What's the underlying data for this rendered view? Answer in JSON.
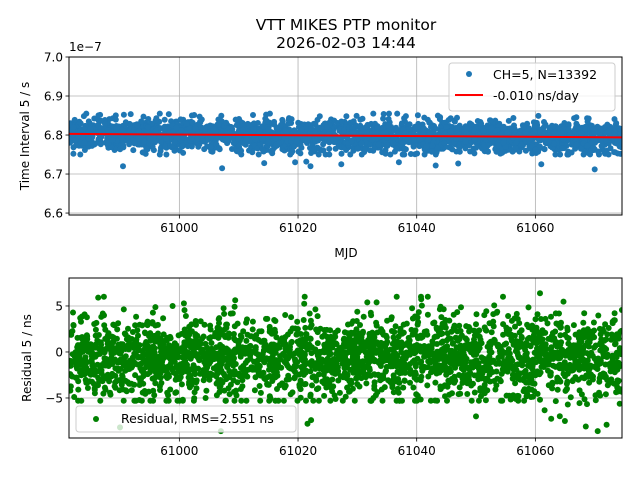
{
  "figure": {
    "title_line1": "VTT MIKES PTP monitor",
    "title_line2": "2026-02-03 14:44"
  },
  "chart_data": [
    {
      "type": "scatter",
      "title": "",
      "xlabel": "MJD",
      "ylabel": "Time Interval 5 / s",
      "y_offset_label": "1e−7",
      "xlim": [
        60981.4,
        61074.6
      ],
      "ylim": [
        6.595,
        7.0
      ],
      "y_scale": 1e-07,
      "xticks": [
        61000,
        61020,
        61040,
        61060
      ],
      "xtick_labels": [
        "61000",
        "61020",
        "61040",
        "61060"
      ],
      "yticks": [
        6.6,
        6.7,
        6.8,
        6.9,
        7.0
      ],
      "ytick_labels": [
        "6.6",
        "6.7",
        "6.8",
        "6.9",
        "7.0"
      ],
      "grid": true,
      "legend_position": "top-right",
      "series": [
        {
          "name": "CH=5, N=13392",
          "kind": "points",
          "color": "#1f77b4",
          "n_points": 13392,
          "center": 6.8,
          "band_low": 6.75,
          "band_high": 6.855,
          "outliers": [
            [
              60990.5,
              6.72
            ],
            [
              61007.2,
              6.715
            ],
            [
              61014.3,
              6.728
            ],
            [
              61019.5,
              6.73
            ],
            [
              61021.4,
              6.732
            ],
            [
              61022.1,
              6.72
            ],
            [
              61027.3,
              6.725
            ],
            [
              61037.0,
              6.73
            ],
            [
              61043.2,
              6.722
            ],
            [
              61047.0,
              6.727
            ],
            [
              61061.0,
              6.725
            ],
            [
              61070.0,
              6.712
            ]
          ]
        },
        {
          "name": "-0.010 ns/day",
          "kind": "line",
          "color": "#ff0000",
          "x": [
            60981.4,
            61074.6
          ],
          "y": [
            6.803,
            6.794
          ]
        }
      ]
    },
    {
      "type": "scatter",
      "title": "",
      "xlabel": "",
      "ylabel": "Residual 5 / ns",
      "xlim": [
        60981.4,
        61074.6
      ],
      "ylim": [
        -9.35,
        8.04
      ],
      "xticks": [
        61000,
        61020,
        61040,
        61060
      ],
      "xtick_labels": [
        "61000",
        "61020",
        "61040",
        "61060"
      ],
      "yticks": [
        -5,
        0,
        5
      ],
      "ytick_labels": [
        "−5",
        "0",
        "5"
      ],
      "grid": true,
      "legend_position": "lower-left",
      "series": [
        {
          "name": "Residual, RMS=2.551 ns",
          "kind": "points",
          "color": "#008000",
          "n_points": 13392,
          "rms": 2.551,
          "band_low": -4.5,
          "band_high": 6.0,
          "outliers": [
            [
              60990.0,
              -8.2
            ],
            [
              61007.0,
              -8.6
            ],
            [
              61021.6,
              -7.8
            ],
            [
              61022.2,
              -7.4
            ],
            [
              61050.0,
              -7.0
            ],
            [
              61068.5,
              -8.1
            ],
            [
              61070.5,
              -8.6
            ],
            [
              61072.0,
              -7.9
            ]
          ]
        }
      ]
    }
  ]
}
